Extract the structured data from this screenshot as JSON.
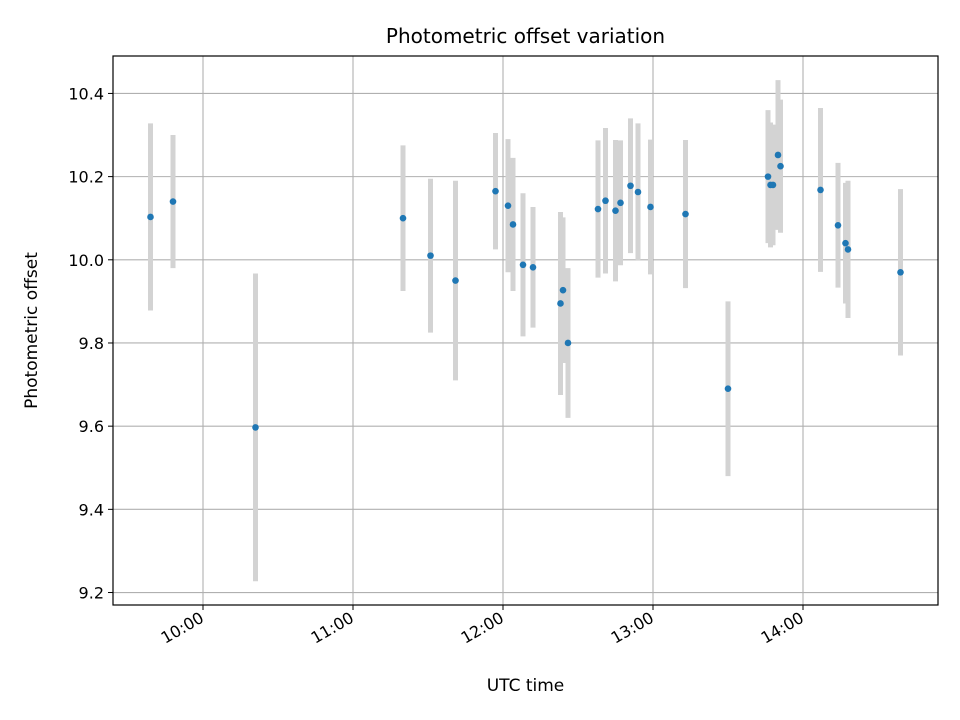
{
  "chart_data": {
    "type": "scatter",
    "title": "Photometric offset variation",
    "xlabel": "UTC time",
    "ylabel": "Photometric offset",
    "x_unit": "hours UTC",
    "xlim": [
      "09:24",
      "14:54"
    ],
    "ylim": [
      9.17,
      10.49
    ],
    "xticks": [
      {
        "value": "10:00",
        "label": "10:00"
      },
      {
        "value": "11:00",
        "label": "11:00"
      },
      {
        "value": "12:00",
        "label": "12:00"
      },
      {
        "value": "13:00",
        "label": "13:00"
      },
      {
        "value": "14:00",
        "label": "14:00"
      }
    ],
    "yticks": [
      9.2,
      9.4,
      9.6,
      9.8,
      10.0,
      10.2,
      10.4
    ],
    "ytick_labels": [
      "9.2",
      "9.4",
      "9.6",
      "9.8",
      "10.0",
      "10.2",
      "10.4"
    ],
    "grid": true,
    "colors": {
      "point": "#1f77b4",
      "errorbar": "#d3d3d3",
      "grid": "#b0b0b0"
    },
    "points": [
      {
        "time": "09:39",
        "y": 10.103,
        "err": 0.225
      },
      {
        "time": "09:48",
        "y": 10.14,
        "err": 0.16
      },
      {
        "time": "10:21",
        "y": 9.597,
        "err": 0.37
      },
      {
        "time": "11:20",
        "y": 10.1,
        "err": 0.175
      },
      {
        "time": "11:31",
        "y": 10.01,
        "err": 0.185
      },
      {
        "time": "11:41",
        "y": 9.95,
        "err": 0.24
      },
      {
        "time": "11:57",
        "y": 10.165,
        "err": 0.14
      },
      {
        "time": "12:02",
        "y": 10.13,
        "err": 0.16
      },
      {
        "time": "12:04",
        "y": 10.085,
        "err": 0.16
      },
      {
        "time": "12:08",
        "y": 9.988,
        "err": 0.172
      },
      {
        "time": "12:12",
        "y": 9.982,
        "err": 0.145
      },
      {
        "time": "12:23",
        "y": 9.895,
        "err": 0.22
      },
      {
        "time": "12:24",
        "y": 9.927,
        "err": 0.175
      },
      {
        "time": "12:26",
        "y": 9.8,
        "err": 0.18
      },
      {
        "time": "12:38",
        "y": 10.122,
        "err": 0.165
      },
      {
        "time": "12:41",
        "y": 10.142,
        "err": 0.175
      },
      {
        "time": "12:45",
        "y": 10.118,
        "err": 0.17
      },
      {
        "time": "12:47",
        "y": 10.137,
        "err": 0.15
      },
      {
        "time": "12:51",
        "y": 10.178,
        "err": 0.162
      },
      {
        "time": "12:54",
        "y": 10.163,
        "err": 0.165
      },
      {
        "time": "12:59",
        "y": 10.127,
        "err": 0.162
      },
      {
        "time": "13:13",
        "y": 10.11,
        "err": 0.178
      },
      {
        "time": "13:30",
        "y": 9.69,
        "err": 0.21
      },
      {
        "time": "13:46",
        "y": 10.2,
        "err": 0.16
      },
      {
        "time": "13:47",
        "y": 10.18,
        "err": 0.15
      },
      {
        "time": "13:48",
        "y": 10.18,
        "err": 0.145
      },
      {
        "time": "13:50",
        "y": 10.252,
        "err": 0.18
      },
      {
        "time": "13:51",
        "y": 10.225,
        "err": 0.16
      },
      {
        "time": "14:07",
        "y": 10.168,
        "err": 0.197
      },
      {
        "time": "14:14",
        "y": 10.083,
        "err": 0.15
      },
      {
        "time": "14:17",
        "y": 10.04,
        "err": 0.145
      },
      {
        "time": "14:18",
        "y": 10.025,
        "err": 0.165
      },
      {
        "time": "14:39",
        "y": 9.97,
        "err": 0.2
      }
    ]
  }
}
